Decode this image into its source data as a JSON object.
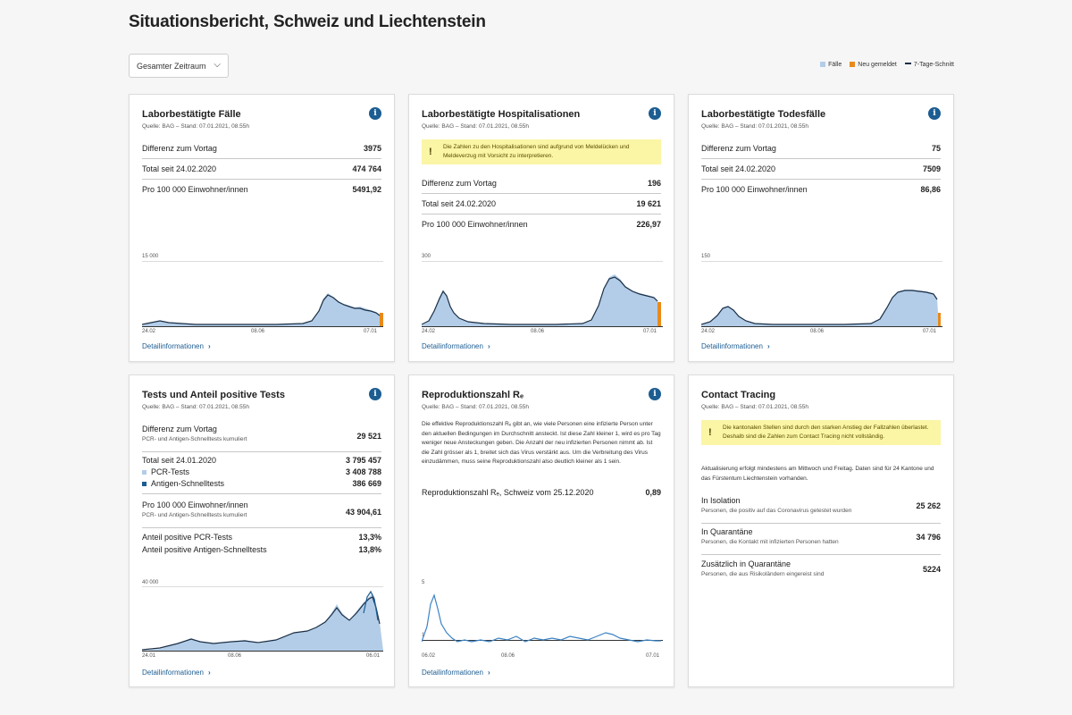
{
  "page": {
    "title": "Situationsbericht, Schweiz und Liechtenstein"
  },
  "filter": {
    "selected": "Gesamter Zeitraum"
  },
  "legend": {
    "items": [
      {
        "label": "Fälle",
        "color": "#b3cde8"
      },
      {
        "label": "Neu gemeldet",
        "color": "#e88a1a"
      },
      {
        "label": "7-Tage-Schnitt",
        "color": "#1b2f45"
      }
    ]
  },
  "colors": {
    "accent": "#1c5d92",
    "bar": "#b3cde8",
    "line": "#1b2f45",
    "new": "#e88a1a",
    "warning_bg": "#fbf5a6"
  },
  "cards": {
    "cases": {
      "title": "Laborbestätigte Fälle",
      "source": "Quelle: BAG – Stand: 07.01.2021, 08.55h",
      "rows": [
        {
          "label": "Differenz zum Vortag",
          "value": "3975"
        },
        {
          "label": "Total seit 24.02.2020",
          "value": "474 764"
        },
        {
          "label": "Pro 100 000 Einwohner/innen",
          "value": "5491,92"
        }
      ],
      "y_tick": "15 000",
      "x_ticks": [
        "24.02",
        "08.06",
        "07.01"
      ],
      "detail": "Detailinformationen"
    },
    "hosp": {
      "title": "Laborbestätigte Hospitalisationen",
      "source": "Quelle: BAG – Stand: 07.01.2021, 08.55h",
      "warning": "Die Zahlen zu den Hospitalisationen sind aufgrund von Meldelücken und Meldeverzug mit Vorsicht zu interpretieren.",
      "rows": [
        {
          "label": "Differenz zum Vortag",
          "value": "196"
        },
        {
          "label": "Total seit 24.02.2020",
          "value": "19 621"
        },
        {
          "label": "Pro 100 000 Einwohner/innen",
          "value": "226,97"
        }
      ],
      "y_tick": "300",
      "x_ticks": [
        "24.02",
        "08.06",
        "07.01"
      ],
      "detail": "Detailinformationen"
    },
    "deaths": {
      "title": "Laborbestätigte Todesfälle",
      "source": "Quelle: BAG – Stand: 07.01.2021, 08.55h",
      "rows": [
        {
          "label": "Differenz zum Vortag",
          "value": "75"
        },
        {
          "label": "Total seit 24.02.2020",
          "value": "7509"
        },
        {
          "label": "Pro 100 000 Einwohner/innen",
          "value": "86,86"
        }
      ],
      "y_tick": "150",
      "x_ticks": [
        "24.02",
        "08.06",
        "07.01"
      ],
      "detail": "Detailinformationen"
    },
    "tests": {
      "title": "Tests und Anteil positive Tests",
      "source": "Quelle: BAG – Stand: 07.01.2021, 08.55h",
      "diff_label": "Differenz zum Vortag",
      "diff_sub": "PCR- und Antigen-Schnelltests kumuliert",
      "diff_value": "29 521",
      "total_label": "Total seit 24.01.2020",
      "total_value": "3 795 457",
      "pcr_label": "PCR-Tests",
      "pcr_value": "3 408 788",
      "antigen_label": "Antigen-Schnelltests",
      "antigen_value": "386 669",
      "per_label": "Pro 100 000 Einwohner/innen",
      "per_sub": "PCR- und Antigen-Schnelltests kumuliert",
      "per_value": "43 904,61",
      "pos_pcr_label": "Anteil positive PCR-Tests",
      "pos_pcr_value": "13,3%",
      "pos_ag_label": "Anteil positive Antigen-Schnelltests",
      "pos_ag_value": "13,8%",
      "y_tick": "40 000",
      "x_ticks": [
        "24.01",
        "08.06",
        "06.01"
      ],
      "detail": "Detailinformationen"
    },
    "re": {
      "title": "Reproduktionszahl Rₑ",
      "source": "Quelle: BAG – Stand: 07.01.2021, 08.55h",
      "text": "Die effektive Reproduktionszahl Rₑ gibt an, wie viele Personen eine infizierte Person unter den aktuellen Bedingungen im Durchschnitt ansteckt. Ist diese Zahl kleiner 1, wird es pro Tag weniger neue Ansteckungen geben. Die Anzahl der neu infizierten Personen nimmt ab. Ist die Zahl grösser als 1, breitet sich das Virus verstärkt aus. Um die Verbreitung des Virus einzudämmen, muss seine Reproduktionszahl also deutlich kleiner als 1 sein.",
      "value_label": "Reproduktionszahl Rₑ, Schweiz vom 25.12.2020",
      "value": "0,89",
      "y_tick_top": "5",
      "y_tick_ref": "1",
      "x_ticks": [
        "06.02",
        "08.06",
        "07.01"
      ],
      "detail": "Detailinformationen"
    },
    "tracing": {
      "title": "Contact Tracing",
      "source": "Quelle: BAG – Stand: 07.01.2021, 08.55h",
      "warning": "Die kantonalen Stellen sind durch den starken Anstieg der Fallzahlen überlastet. Deshalb sind die Zahlen zum Contact Tracing nicht vollständig.",
      "update_text": "Aktualisierung erfolgt mindestens am Mittwoch und Freitag. Daten sind für 24 Kantone und das Fürstentum Liechtenstein vorhanden.",
      "rows": [
        {
          "label": "In Isolation",
          "sub": "Personen, die positiv auf das Coronavirus getestet wurden",
          "value": "25 262"
        },
        {
          "label": "In Quarantäne",
          "sub": "Personen, die Kontakt mit infizierten Personen hatten",
          "value": "34 796"
        },
        {
          "label": "Zusätzlich in Quarantäne",
          "sub": "Personen, die aus Risikoländern eingereist sind",
          "value": "5224"
        }
      ]
    }
  }
}
